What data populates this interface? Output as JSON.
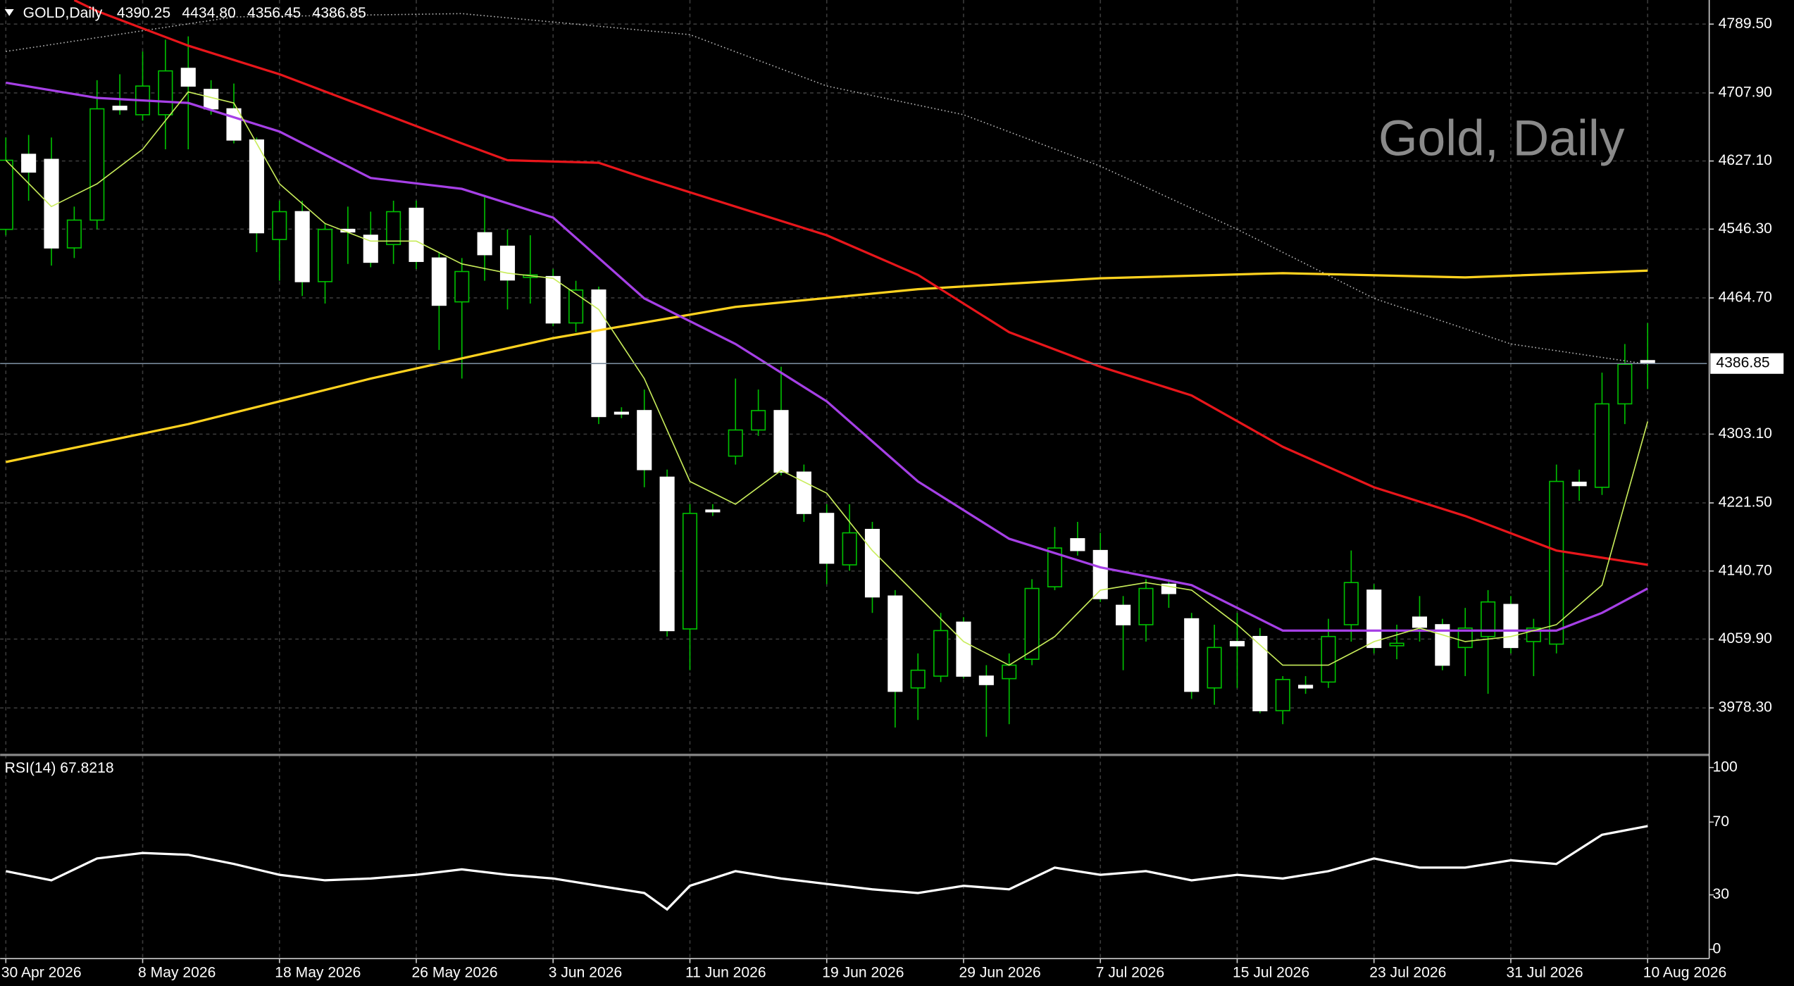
{
  "chart_data": [
    {
      "type": "candlestick",
      "symbol": "GOLD,Daily",
      "ohlc_text": [
        "4390.25",
        "4434.80",
        "4356.45",
        "4386.85"
      ],
      "watermark": "Gold, Daily",
      "last_price": {
        "value": 4386.85,
        "label": "4386.85"
      },
      "bull_body": "#000000",
      "bear_body": "#ffffff",
      "wick_color": "#00c000",
      "grid": true,
      "xlim": [
        -0.25,
        74.6
      ],
      "ylim": [
        3922.5,
        4818.1
      ],
      "xticks": [
        {
          "value": 0,
          "label": "30 Apr 2026"
        },
        {
          "value": 6,
          "label": "8 May 2026"
        },
        {
          "value": 12,
          "label": "18 May 2026"
        },
        {
          "value": 18,
          "label": "26 May 2026"
        },
        {
          "value": 24,
          "label": "3 Jun 2026"
        },
        {
          "value": 30,
          "label": "11 Jun 2026"
        },
        {
          "value": 36,
          "label": "19 Jun 2026"
        },
        {
          "value": 42,
          "label": "29 Jun 2026"
        },
        {
          "value": 48,
          "label": "7 Jul 2026"
        },
        {
          "value": 54,
          "label": "15 Jul 2026"
        },
        {
          "value": 60,
          "label": "23 Jul 2026"
        },
        {
          "value": 66,
          "label": "31 Jul 2026"
        },
        {
          "value": 72,
          "label": "10 Aug 2026"
        }
      ],
      "yticks": [
        {
          "value": 4789.5,
          "label": "4789.50"
        },
        {
          "value": 4707.9,
          "label": "4707.90"
        },
        {
          "value": 4627.1,
          "label": "4627.10"
        },
        {
          "value": 4546.3,
          "label": "4546.30"
        },
        {
          "value": 4464.7,
          "label": "4464.70"
        },
        {
          "value": 4303.1,
          "label": "4303.10"
        },
        {
          "value": 4221.5,
          "label": "4221.50"
        },
        {
          "value": 4140.7,
          "label": "4140.70"
        },
        {
          "value": 4059.9,
          "label": "4059.90"
        },
        {
          "value": 3978.3,
          "label": "3978.30"
        }
      ],
      "open": [
        4546,
        4635,
        4629,
        4524,
        4557,
        4692,
        4682,
        4682,
        4737,
        4712,
        4689,
        4652,
        4534,
        4567,
        4484,
        4546,
        4539,
        4528,
        4571,
        4512,
        4460,
        4542,
        4526,
        4489,
        4490,
        4435,
        4474,
        4329,
        4331,
        4252,
        4072,
        4213,
        4277,
        4308,
        4331,
        4258,
        4209,
        4148,
        4190,
        4111,
        4002,
        4016,
        4080,
        4016,
        4013,
        4036,
        4122,
        4179,
        4165,
        4100,
        4077,
        4125,
        4084,
        4002,
        4057,
        4063,
        3975,
        4005,
        4009,
        4077,
        4118,
        4052,
        4086,
        4077,
        4050,
        4063,
        4101,
        4057,
        4054,
        4246,
        4240,
        4339,
        4390.25
      ],
      "high": [
        4655,
        4658,
        4655,
        4573,
        4723,
        4730,
        4757,
        4771,
        4775,
        4723,
        4719,
        4655,
        4580,
        4580,
        4553,
        4573,
        4567,
        4580,
        4580,
        4519,
        4512,
        4587,
        4546,
        4539,
        4499,
        4485,
        4478,
        4335,
        4356,
        4261,
        4220,
        4220,
        4369,
        4356,
        4383,
        4267,
        4220,
        4220,
        4199,
        4118,
        4043,
        4091,
        4086,
        4029,
        4043,
        4131,
        4193,
        4199,
        4186,
        4111,
        4131,
        4131,
        4091,
        4077,
        4091,
        4073,
        4016,
        4016,
        4084,
        4165,
        4125,
        4077,
        4111,
        4084,
        4097,
        4118,
        4111,
        4084,
        4267,
        4261,
        4376,
        4410,
        4434.8
      ],
      "low": [
        4539,
        4580,
        4503,
        4512,
        4546,
        4682,
        4675,
        4641,
        4641,
        4682,
        4648,
        4519,
        4485,
        4467,
        4458,
        4505,
        4501,
        4505,
        4499,
        4403,
        4369,
        4485,
        4451,
        4458,
        4431,
        4424,
        4315,
        4322,
        4240,
        4063,
        4023,
        4206,
        4267,
        4301,
        4254,
        4199,
        4125,
        4141,
        4091,
        3955,
        3964,
        4009,
        4013,
        3944,
        3959,
        4029,
        4118,
        4159,
        4104,
        4023,
        4057,
        4097,
        3989,
        3982,
        4002,
        3972,
        3959,
        3995,
        4002,
        4057,
        4043,
        4036,
        4057,
        4023,
        4016,
        3995,
        4043,
        4016,
        4043,
        4224,
        4231,
        4315,
        4356.45
      ],
      "close": [
        4628,
        4614,
        4524,
        4557,
        4689,
        4688,
        4716,
        4734,
        4716,
        4689,
        4652,
        4542,
        4567,
        4484,
        4546,
        4543,
        4507,
        4567,
        4508,
        4456,
        4496,
        4516,
        4486,
        4492,
        4435,
        4474,
        4324,
        4327,
        4261,
        4070,
        4209,
        4211,
        4308,
        4331,
        4258,
        4209,
        4150,
        4186,
        4110,
        3998,
        4023,
        4070,
        4016,
        4006,
        4029,
        4120,
        4168,
        4165,
        4108,
        4077,
        4120,
        4114,
        3998,
        4050,
        4052,
        3975,
        4012,
        4002,
        4063,
        4127,
        4050,
        4055,
        4074,
        4029,
        4073,
        4104,
        4050,
        4073,
        4247,
        4242,
        4339,
        4386,
        4386.85
      ],
      "lines": [
        {
          "color": "#ffffff",
          "style": "dotted",
          "x": [
            0,
            10,
            20,
            30,
            36,
            42,
            48,
            54,
            60,
            66,
            72
          ],
          "values": [
            4757,
            4798,
            4802,
            4777,
            4716,
            4682,
            4621,
            4546,
            4464,
            4410,
            4386
          ]
        },
        {
          "color": "#ffd21f",
          "style": "solid",
          "x": [
            0,
            8,
            16,
            24,
            32,
            40,
            48,
            56,
            64,
            72
          ],
          "values": [
            4270,
            4315,
            4369,
            4417,
            4454,
            4475,
            4488,
            4494,
            4489,
            4497
          ]
        },
        {
          "color": "#e8161b",
          "style": "solid",
          "x": [
            3,
            4,
            8,
            12,
            16,
            20,
            22,
            26,
            28,
            32,
            36,
            40,
            44,
            48,
            52,
            56,
            60,
            64,
            68,
            72
          ],
          "values": [
            4818,
            4805,
            4764,
            4730,
            4689,
            4648,
            4628,
            4625,
            4607,
            4573,
            4539,
            4492,
            4424,
            4383,
            4349,
            4288,
            4240,
            4206,
            4165,
            4148
          ]
        },
        {
          "color": "#a640e6",
          "style": "solid",
          "x": [
            0,
            4,
            8,
            12,
            16,
            20,
            24,
            28,
            30,
            32,
            36,
            40,
            44,
            48,
            52,
            56,
            60,
            64,
            68,
            70,
            72
          ],
          "values": [
            4720,
            4702,
            4696,
            4662,
            4607,
            4594,
            4560,
            4464,
            4437,
            4410,
            4342,
            4247,
            4179,
            4145,
            4124,
            4070,
            4070,
            4070,
            4070,
            4091,
            4120
          ]
        },
        {
          "color": "#c8ec5a",
          "style": "thin",
          "x": [
            0,
            2,
            4,
            6,
            8,
            10,
            12,
            14,
            16,
            18,
            20,
            22,
            24,
            26,
            28,
            30,
            32,
            34,
            36,
            38,
            40,
            42,
            44,
            46,
            48,
            50,
            52,
            54,
            56,
            58,
            60,
            62,
            64,
            66,
            68,
            70,
            72
          ],
          "values": [
            4628,
            4573,
            4600,
            4641,
            4709,
            4696,
            4600,
            4553,
            4532,
            4532,
            4505,
            4494,
            4488,
            4451,
            4369,
            4247,
            4220,
            4260,
            4233,
            4165,
            4111,
            4057,
            4029,
            4063,
            4118,
            4127,
            4118,
            4077,
            4029,
            4029,
            4057,
            4073,
            4057,
            4063,
            4077,
            4124,
            4318
          ]
        }
      ]
    },
    {
      "type": "line",
      "label": "RSI(14) 67.8218",
      "color": "#ffffff",
      "ylim": [
        0,
        100
      ],
      "yticks": [
        100,
        70,
        30,
        0
      ],
      "x": [
        0,
        2,
        4,
        6,
        8,
        10,
        12,
        14,
        16,
        18,
        20,
        22,
        24,
        26,
        28,
        29,
        30,
        32,
        34,
        36,
        38,
        40,
        42,
        44,
        46,
        48,
        50,
        52,
        54,
        56,
        58,
        60,
        62,
        64,
        66,
        68,
        70,
        72
      ],
      "values": [
        43,
        38,
        50,
        53,
        52,
        47,
        41,
        38,
        39,
        41,
        44,
        41,
        39,
        35,
        31,
        22,
        35,
        43,
        39,
        36,
        33,
        31,
        35,
        33,
        45,
        41,
        43,
        38,
        41,
        39,
        43,
        50,
        45,
        45,
        49,
        47,
        63,
        67.8
      ]
    }
  ]
}
